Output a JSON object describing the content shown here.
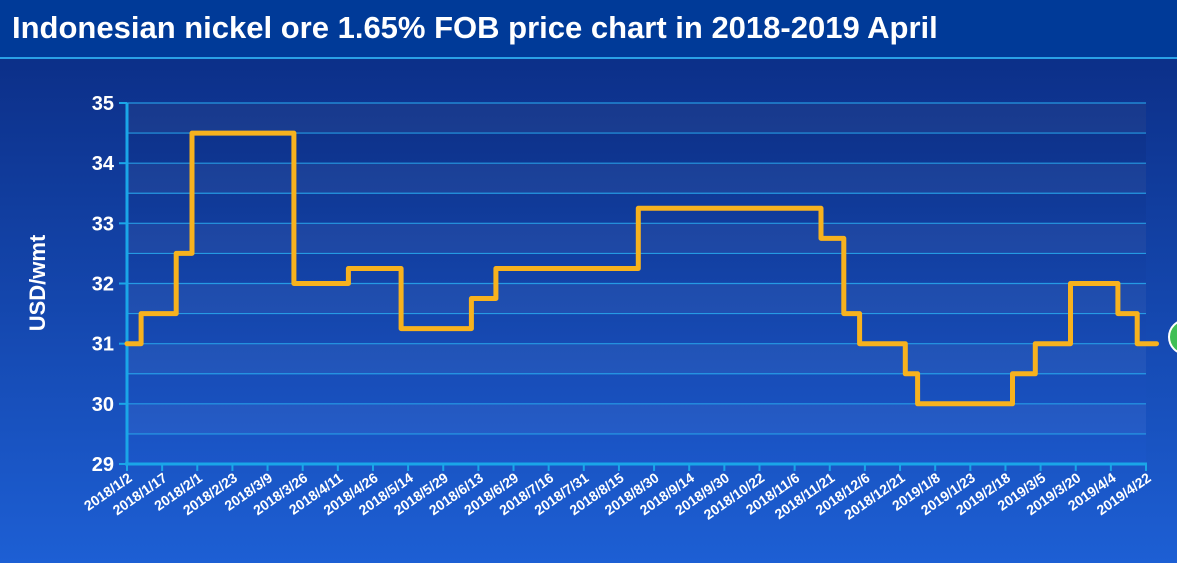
{
  "title": "Indonesian nickel ore 1.65% FOB price chart in 2018-2019 April",
  "colors": {
    "header_bg": "#003a98",
    "plot_bg_top": "#0c2f86",
    "plot_bg_bottom": "#1b57c9",
    "line": "#f7b21e",
    "axis": "#1aa6e8",
    "grid": "#27a3ea",
    "text": "#ffffff",
    "badge": "#3fbf55"
  },
  "chart_data": {
    "type": "line",
    "title": "Indonesian nickel ore 1.65% FOB price chart in 2018-2019 April",
    "xlabel": "",
    "ylabel": "USD/wmt",
    "ylim": [
      29,
      35
    ],
    "yticks": [
      29,
      30,
      31,
      32,
      33,
      34,
      35
    ],
    "xtick_labels": [
      "2018/1/2",
      "2018/1/17",
      "2018/2/1",
      "2018/2/23",
      "2018/3/9",
      "2018/3/26",
      "2018/4/11",
      "2018/4/26",
      "2018/5/14",
      "2018/5/29",
      "2018/6/13",
      "2018/6/29",
      "2018/7/16",
      "2018/7/31",
      "2018/8/15",
      "2018/8/30",
      "2018/9/14",
      "2018/9/30",
      "2018/10/22",
      "2018/11/6",
      "2018/11/21",
      "2018/12/6",
      "2018/12/21",
      "2019/1/8",
      "2019/1/23",
      "2019/2/18",
      "2019/3/5",
      "2019/3/20",
      "2019/4/4",
      "2019/4/22"
    ],
    "grid": true,
    "step": true,
    "series": [
      {
        "points": [
          [
            0,
            31
          ],
          [
            0.4,
            31.5
          ],
          [
            1.4,
            32.5
          ],
          [
            1.85,
            34.5
          ],
          [
            4.75,
            32
          ],
          [
            6.3,
            32.25
          ],
          [
            7.8,
            31.25
          ],
          [
            9.8,
            31.75
          ],
          [
            10.5,
            32.25
          ],
          [
            14.55,
            33.25
          ],
          [
            19.75,
            32.75
          ],
          [
            20.4,
            31.5
          ],
          [
            20.85,
            31
          ],
          [
            22.15,
            30.5
          ],
          [
            22.5,
            30
          ],
          [
            25.2,
            30.5
          ],
          [
            25.85,
            31
          ],
          [
            26.85,
            32
          ],
          [
            28.2,
            31.5
          ],
          [
            28.75,
            31
          ],
          [
            29.3,
            31
          ]
        ]
      }
    ]
  }
}
